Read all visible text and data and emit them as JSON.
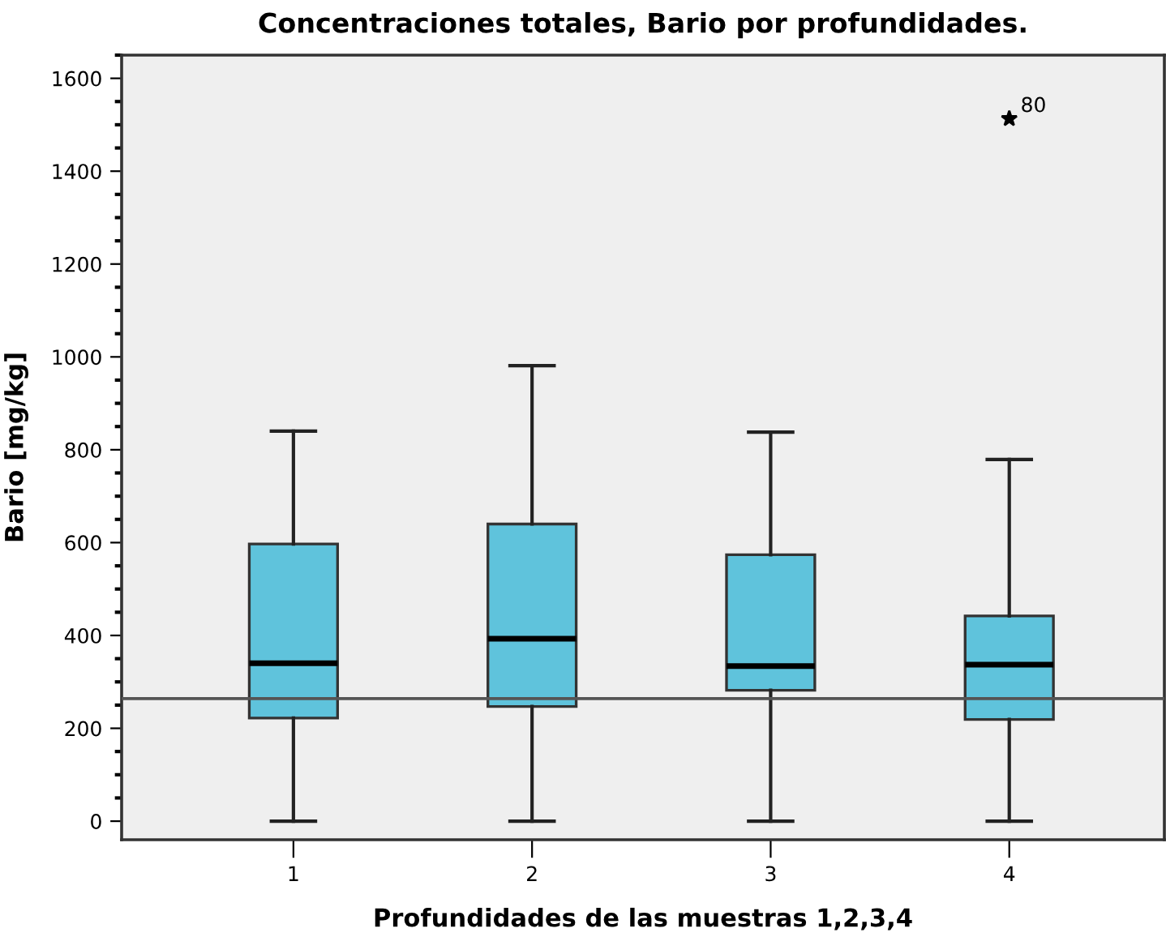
{
  "chart_data": {
    "type": "box",
    "title": "Concentraciones totales, Bario por profundidades.",
    "xlabel": "Profundidades de las muestras 1,2,3,4",
    "ylabel": "Bario [mg/kg]",
    "categories": [
      "1",
      "2",
      "3",
      "4"
    ],
    "boxes": [
      {
        "low": 0,
        "q1": 222,
        "median": 340,
        "q3": 597,
        "high": 840
      },
      {
        "low": 0,
        "q1": 247,
        "median": 393,
        "q3": 640,
        "high": 981
      },
      {
        "low": 0,
        "q1": 282,
        "median": 334,
        "q3": 574,
        "high": 838
      },
      {
        "low": 0,
        "q1": 219,
        "median": 337,
        "q3": 442,
        "high": 779,
        "outliers": [
          1513
        ]
      }
    ],
    "color": "#5fc3dc",
    "marker": "star",
    "annotations": [
      "80"
    ],
    "ref_lines": [
      {
        "axis": "y",
        "value": 264,
        "color": "#555555"
      }
    ],
    "ylim": [
      -40,
      1650
    ],
    "yticks": [
      0,
      200,
      400,
      600,
      800,
      1000,
      1200,
      1400,
      1600
    ],
    "grid": false,
    "legend": false
  }
}
